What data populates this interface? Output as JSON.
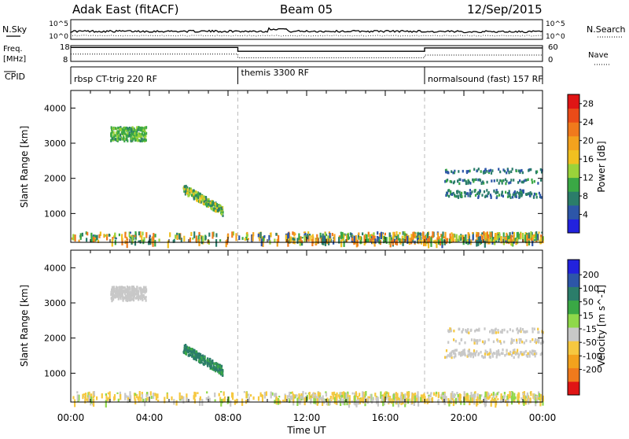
{
  "header": {
    "left": "Adak East (fitACF)",
    "center": "Beam 05",
    "right": "12/Sep/2015"
  },
  "top_panels": {
    "nsky_label": "N.Sky",
    "nsearch_label": "N.Search",
    "nsky_ticks": [
      "10^5",
      "10^0"
    ],
    "nsearch_ticks": [
      "10^5",
      "10^0"
    ],
    "freq_label_1": "Freq.",
    "freq_label_2": "[MHz]",
    "freq_ticks": [
      "18",
      "8"
    ],
    "nave_label": "Nave",
    "nave_ticks": [
      "60",
      "0"
    ],
    "cpid_label": "CPID",
    "modes": [
      {
        "name": "rbsp CT-trig 220 RF",
        "start_h": 0,
        "end_h": 8.5
      },
      {
        "name": "themis 3300 RF",
        "start_h": 8.5,
        "end_h": 18
      },
      {
        "name": "normalsound (fast) 157 RF",
        "start_h": 18,
        "end_h": 24
      }
    ],
    "freq_series_mhz": [
      [
        0,
        16.8
      ],
      [
        8.5,
        16.8
      ],
      [
        8.5,
        14.2
      ],
      [
        18,
        14.2
      ],
      [
        18,
        16.5
      ],
      [
        24,
        16.5
      ]
    ],
    "nave_series": [
      [
        0,
        26
      ],
      [
        8.5,
        26
      ],
      [
        8.5,
        11
      ],
      [
        18,
        11
      ],
      [
        18,
        22
      ],
      [
        24,
        22
      ]
    ]
  },
  "colors": {
    "power": [
      "#2222dd",
      "#2d56a8",
      "#2b7d6a",
      "#3aa845",
      "#9ad33a",
      "#f0c020",
      "#f3a21d",
      "#f07a1c",
      "#ea4b18",
      "#e01515"
    ],
    "velocity_neg_to_pos": [
      "#e01515",
      "#f07a1c",
      "#f3a21d",
      "#f6c840",
      "#c8c8c8",
      "#8fd84a",
      "#3aa845",
      "#2b7d6a",
      "#2d56a8",
      "#2222dd"
    ]
  },
  "chart_data": [
    {
      "type": "heatmap",
      "title": "Power",
      "xlabel": "Time UT",
      "ylabel": "Slant Range [km]",
      "colorbar_label": "Power [dB]",
      "colorbar_ticks": [
        "4",
        "8",
        "12",
        "16",
        "20",
        "24",
        "28"
      ],
      "colorbar_range": [
        0,
        30
      ],
      "xlim_hours": [
        0,
        24
      ],
      "ylim_km": [
        180,
        4500
      ],
      "y_ticks": [
        "1000",
        "2000",
        "3000",
        "4000"
      ],
      "x_ticks": [
        "00:00",
        "04:00",
        "08:00",
        "12:00",
        "16:00",
        "20:00",
        "00:00"
      ],
      "patches": [
        {
          "t": [
            2.0,
            3.8
          ],
          "r": [
            3050,
            3450
          ],
          "values_db": [
            8,
            14
          ]
        },
        {
          "t": [
            5.7,
            7.7
          ],
          "r": [
            1000,
            1650
          ],
          "values_db": [
            6,
            18
          ]
        },
        {
          "t": [
            19.0,
            24.0
          ],
          "r": [
            1400,
            2600
          ],
          "values_db": [
            4,
            10
          ]
        },
        {
          "t": [
            0.0,
            24.0
          ],
          "r": [
            180,
            450
          ],
          "values_db": [
            4,
            24
          ]
        }
      ]
    },
    {
      "type": "heatmap",
      "title": "Velocity",
      "xlabel": "Time UT",
      "ylabel": "Slant Range [km]",
      "colorbar_label": "Velocity [m s^-1]",
      "colorbar_ticks": [
        "200",
        "100",
        "50",
        "15",
        "-15",
        "-50",
        "-100",
        "-200"
      ],
      "colorbar_range": [
        -250,
        250
      ],
      "xlim_hours": [
        0,
        24
      ],
      "ylim_km": [
        180,
        4500
      ],
      "y_ticks": [
        "1000",
        "2000",
        "3000",
        "4000"
      ],
      "x_ticks": [
        "00:00",
        "04:00",
        "08:00",
        "12:00",
        "16:00",
        "20:00",
        "00:00"
      ],
      "patches": [
        {
          "t": [
            2.0,
            3.8
          ],
          "r": [
            3050,
            3450
          ],
          "values_ms": [
            -10,
            10
          ]
        },
        {
          "t": [
            5.7,
            7.7
          ],
          "r": [
            1000,
            1650
          ],
          "values_ms": [
            60,
            200
          ]
        },
        {
          "t": [
            19.0,
            24.0
          ],
          "r": [
            1400,
            2600
          ],
          "values_ms": [
            -20,
            10
          ]
        },
        {
          "t": [
            0.0,
            24.0
          ],
          "r": [
            180,
            450
          ],
          "values_ms": [
            -50,
            30
          ]
        }
      ]
    }
  ]
}
